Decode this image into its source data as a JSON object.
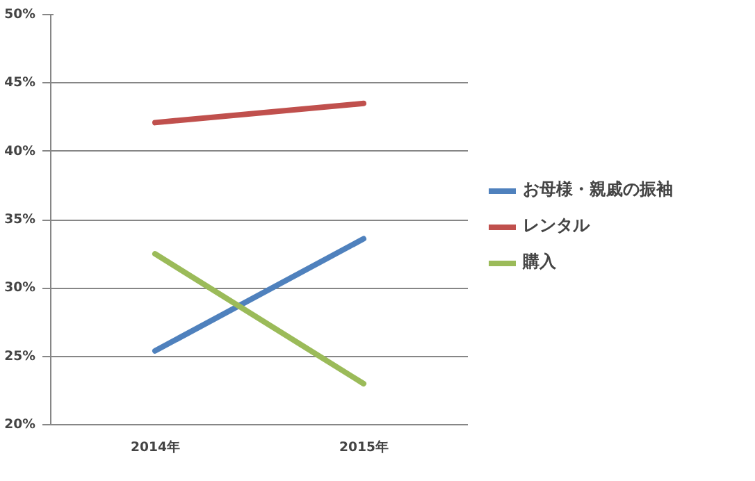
{
  "chart_data": {
    "type": "line",
    "categories": [
      "2014年",
      "2015年"
    ],
    "series": [
      {
        "name": "お母様・親戚の振袖",
        "color": "#4f81bd",
        "values": [
          25.4,
          33.6
        ]
      },
      {
        "name": "レンタル",
        "color": "#c0504d",
        "values": [
          42.1,
          43.5
        ]
      },
      {
        "name": "購入",
        "color": "#9bbb59",
        "values": [
          32.5,
          23.0
        ]
      }
    ],
    "ylim": [
      20,
      50
    ],
    "yticks": [
      {
        "value": 20,
        "label": "20%"
      },
      {
        "value": 25,
        "label": "25%"
      },
      {
        "value": 30,
        "label": "30%"
      },
      {
        "value": 35,
        "label": "35%"
      },
      {
        "value": 40,
        "label": "40%"
      },
      {
        "value": 45,
        "label": "45%"
      },
      {
        "value": 50,
        "label": "50%"
      }
    ],
    "grid": "y",
    "legend": "right",
    "marker": "none",
    "line_style": "solid"
  }
}
